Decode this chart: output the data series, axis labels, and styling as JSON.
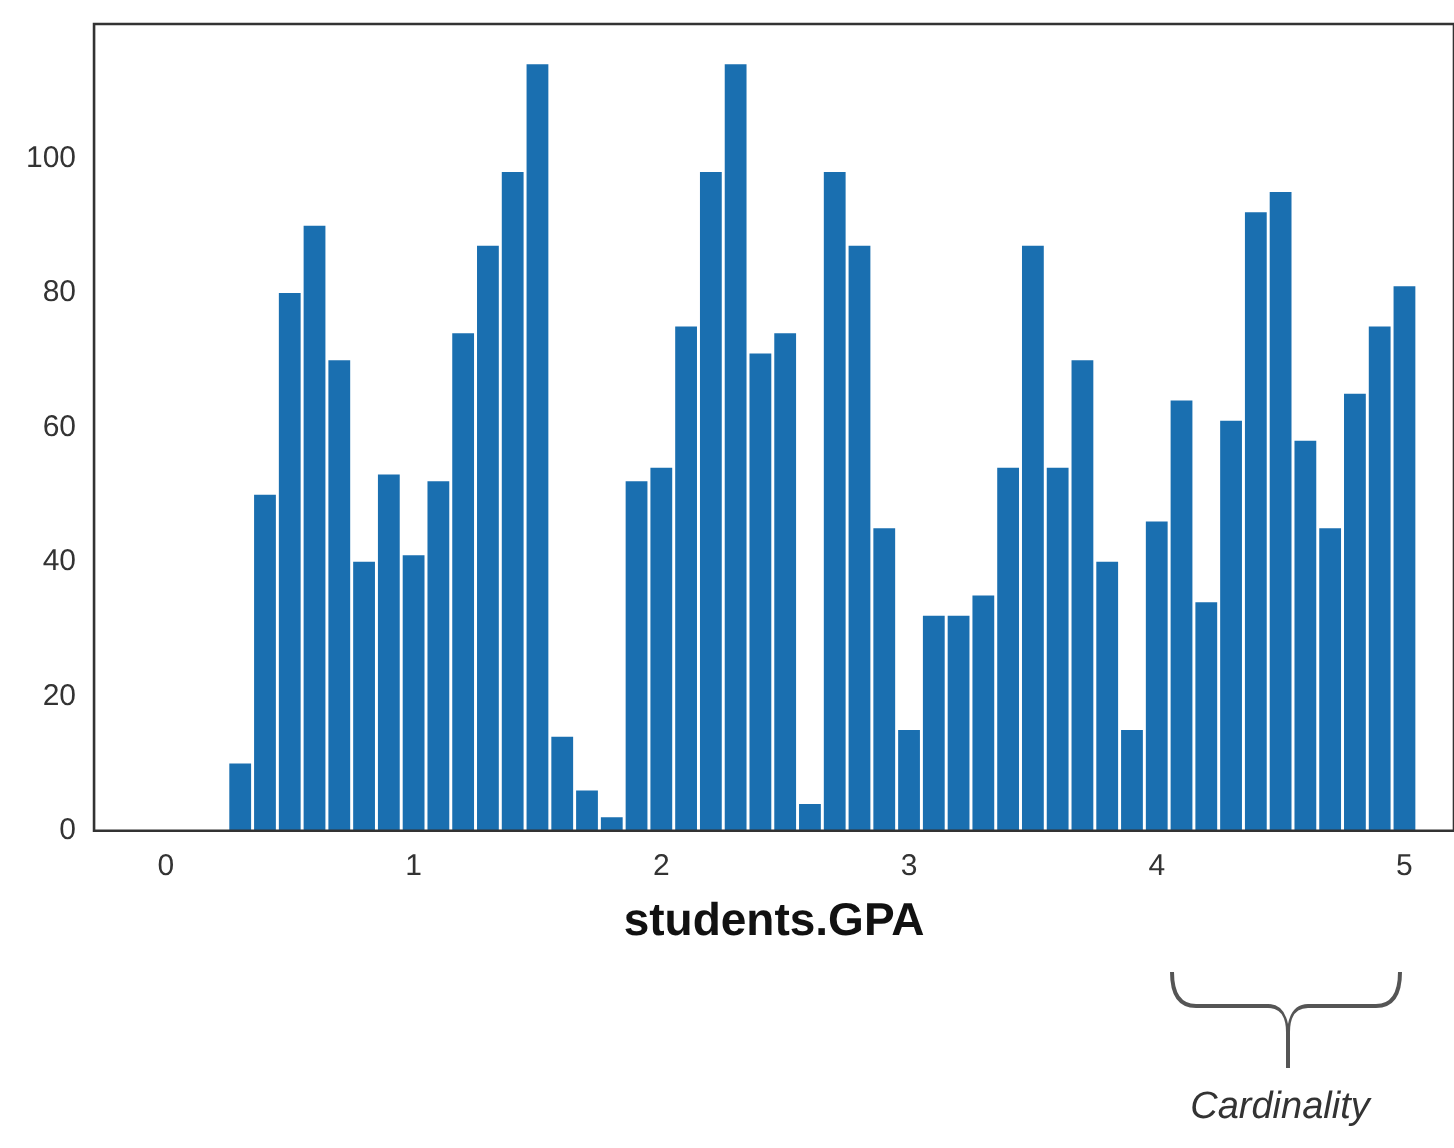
{
  "chart_data": {
    "type": "histogram",
    "xlabel": "students.GPA",
    "bins": [
      0.25,
      0.35,
      0.45,
      0.55,
      0.65,
      0.75,
      0.85,
      0.95,
      1.05,
      1.15,
      1.25,
      1.35,
      1.45,
      1.55,
      1.65,
      1.75,
      1.85,
      1.95,
      2.05,
      2.15,
      2.25,
      2.35,
      2.45,
      2.55,
      2.65,
      2.75,
      2.85,
      2.95,
      3.05,
      3.15,
      3.25,
      3.35,
      3.45,
      3.55,
      3.65,
      3.75,
      3.85,
      3.95,
      4.05,
      4.15,
      4.25,
      4.35,
      4.45,
      4.55,
      4.65,
      4.75,
      4.85,
      4.95,
      5.05
    ],
    "values": [
      10,
      50,
      80,
      90,
      70,
      40,
      53,
      41,
      52,
      74,
      87,
      98,
      114,
      14,
      6,
      2,
      52,
      54,
      75,
      98,
      114,
      71,
      74,
      4,
      98,
      87,
      45,
      15,
      32,
      32,
      35,
      54,
      87,
      54,
      70,
      40,
      15,
      46,
      64,
      34,
      61,
      92,
      95,
      58,
      45,
      65,
      75,
      81
    ],
    "color": "#1a6fb0",
    "xlim": [
      -0.29,
      5.2
    ],
    "xticks": [
      0,
      1,
      2,
      3,
      4,
      5
    ],
    "ylim": [
      0,
      120
    ],
    "yticks": [
      0,
      20,
      40,
      60,
      80,
      100
    ],
    "grid": false,
    "legend": false,
    "annotations": [
      "Cardinality"
    ]
  }
}
